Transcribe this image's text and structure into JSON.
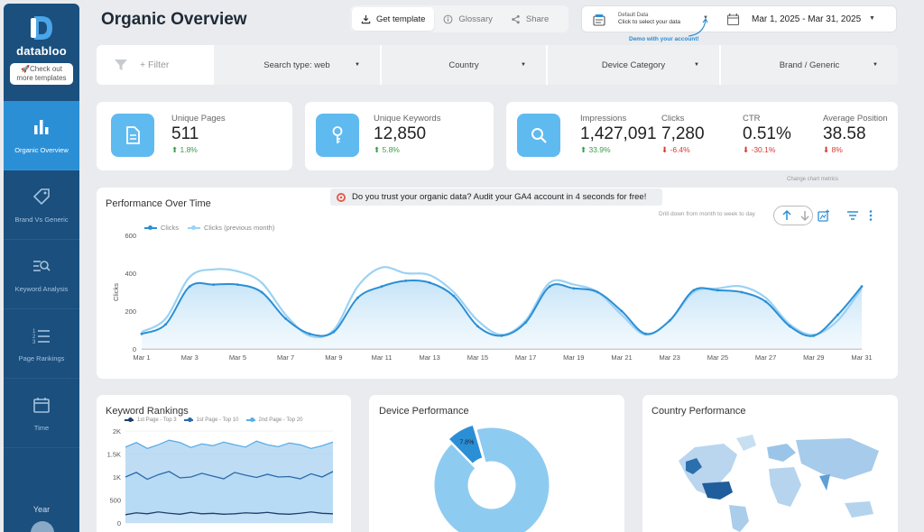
{
  "sidebar": {
    "brand": "databloo",
    "promo": "🚀Check out more  templates",
    "items": [
      {
        "label": "Organic Overview",
        "icon": "bar-chart-icon",
        "active": true
      },
      {
        "label": "Brand Vs Generic",
        "icon": "tag-icon",
        "active": false
      },
      {
        "label": "Keyword Analysis",
        "icon": "list-search-icon",
        "active": false
      },
      {
        "label": "Page Rankings",
        "icon": "numbered-list-icon",
        "active": false
      },
      {
        "label": "Time",
        "icon": "calendar-icon",
        "active": false
      }
    ],
    "year_label": "Year"
  },
  "header": {
    "title": "Organic Overview",
    "buttons": {
      "get_template": "Get template",
      "glossary": "Glossary",
      "share": "Share"
    },
    "data_source": {
      "label": "Default Data",
      "sub": "Click to select your data"
    },
    "date_range": "Mar 1, 2025 - Mar 31, 2025",
    "demo_link": "Demo with your account!"
  },
  "filters": {
    "main": "+ Filter",
    "dropdowns": [
      "Search type: web",
      "Country",
      "Device Category",
      "Brand / Generic"
    ]
  },
  "kpis": {
    "unique_pages": {
      "label": "Unique Pages",
      "value": "511",
      "change": "1.8%",
      "dir": "up"
    },
    "unique_keywords": {
      "label": "Unique Keywords",
      "value": "12,850",
      "change": "5.8%",
      "dir": "up"
    },
    "impressions": {
      "label": "Impressions",
      "value": "1,427,091",
      "change": "33.9%",
      "dir": "up"
    },
    "clicks": {
      "label": "Clicks",
      "value": "7,280",
      "change": "-6.4%",
      "dir": "down"
    },
    "ctr": {
      "label": "CTR",
      "value": "0.51%",
      "change": "-30.1%",
      "dir": "down"
    },
    "avg_position": {
      "label": "Average Position",
      "value": "38.58",
      "change": "8%",
      "dir": "down"
    }
  },
  "performance": {
    "title": "Performance Over Time",
    "banner": "Do you trust your organic data? Audit your GA4 account in 4 seconds for free!",
    "hint_metrics": "Change chart metrics",
    "hint_drill": "Drill down from month to week to day"
  },
  "bottom": {
    "keyword_title": "Keyword Rankings",
    "device_title": "Device Performance",
    "country_title": "Country Performance"
  },
  "colors": {
    "accent": "#2b8fd6",
    "sidebar": "#1a4f7e",
    "up": "#3a9c4c",
    "down": "#d7392f"
  },
  "chart_data": [
    {
      "type": "line",
      "title": "Performance Over Time",
      "ylabel": "Clicks",
      "ylim": [
        0,
        600
      ],
      "yticks": [
        0,
        200,
        400,
        600
      ],
      "x_ticks": [
        "Mar 1",
        "Mar 3",
        "Mar 5",
        "Mar 7",
        "Mar 9",
        "Mar 11",
        "Mar 13",
        "Mar 15",
        "Mar 17",
        "Mar 19",
        "Mar 21",
        "Mar 23",
        "Mar 25",
        "Mar 27",
        "Mar 29",
        "Mar 31"
      ],
      "x": [
        1,
        2,
        3,
        4,
        5,
        6,
        7,
        8,
        9,
        10,
        11,
        12,
        13,
        14,
        15,
        16,
        17,
        18,
        19,
        20,
        21,
        22,
        23,
        24,
        25,
        26,
        27,
        28,
        29,
        30,
        31
      ],
      "series": [
        {
          "name": "Clicks",
          "color": "#2b8fd6",
          "values": [
            80,
            130,
            330,
            340,
            340,
            300,
            160,
            80,
            90,
            270,
            330,
            360,
            350,
            280,
            120,
            70,
            140,
            330,
            320,
            300,
            200,
            80,
            150,
            310,
            310,
            300,
            250,
            120,
            70,
            180,
            330
          ]
        },
        {
          "name": "Clicks (previous month)",
          "color": "#9cd2f3",
          "values": [
            90,
            160,
            380,
            420,
            410,
            350,
            180,
            70,
            100,
            330,
            430,
            400,
            390,
            300,
            150,
            75,
            150,
            350,
            340,
            300,
            180,
            75,
            150,
            300,
            320,
            330,
            270,
            130,
            75,
            150,
            320
          ]
        }
      ]
    },
    {
      "type": "area",
      "title": "Keyword Rankings",
      "yticks": [
        "0",
        "500",
        "1K",
        "1.5K",
        "2K"
      ],
      "ylim": [
        0,
        2000
      ],
      "series": [
        {
          "name": "1st Page - Top 3",
          "color": "#1d3f6a",
          "values": [
            180,
            220,
            200,
            240,
            210,
            190,
            230,
            200,
            210,
            190,
            200,
            220,
            210,
            230,
            200,
            190,
            210,
            240,
            210,
            200
          ]
        },
        {
          "name": "1st Page - Top 10",
          "color": "#2b6aa8",
          "values": [
            1000,
            1100,
            950,
            1050,
            1120,
            980,
            1000,
            1080,
            1020,
            960,
            1100,
            1040,
            990,
            1060,
            1000,
            1010,
            960,
            1070,
            1000,
            1120
          ]
        },
        {
          "name": "2nd Page - Top 20",
          "color": "#5aaee8",
          "values": [
            1650,
            1750,
            1620,
            1700,
            1800,
            1750,
            1640,
            1720,
            1680,
            1760,
            1700,
            1650,
            1780,
            1700,
            1660,
            1740,
            1700,
            1620,
            1680,
            1760
          ]
        }
      ]
    },
    {
      "type": "pie",
      "title": "Device Performance",
      "slices": [
        {
          "label": "92.0%",
          "value": 92.0,
          "color": "#8ecbf1"
        },
        {
          "label": "7.8%",
          "value": 7.8,
          "color": "#2b8fd6"
        },
        {
          "label": "",
          "value": 0.2,
          "color": "#1a4f7e"
        }
      ]
    }
  ]
}
